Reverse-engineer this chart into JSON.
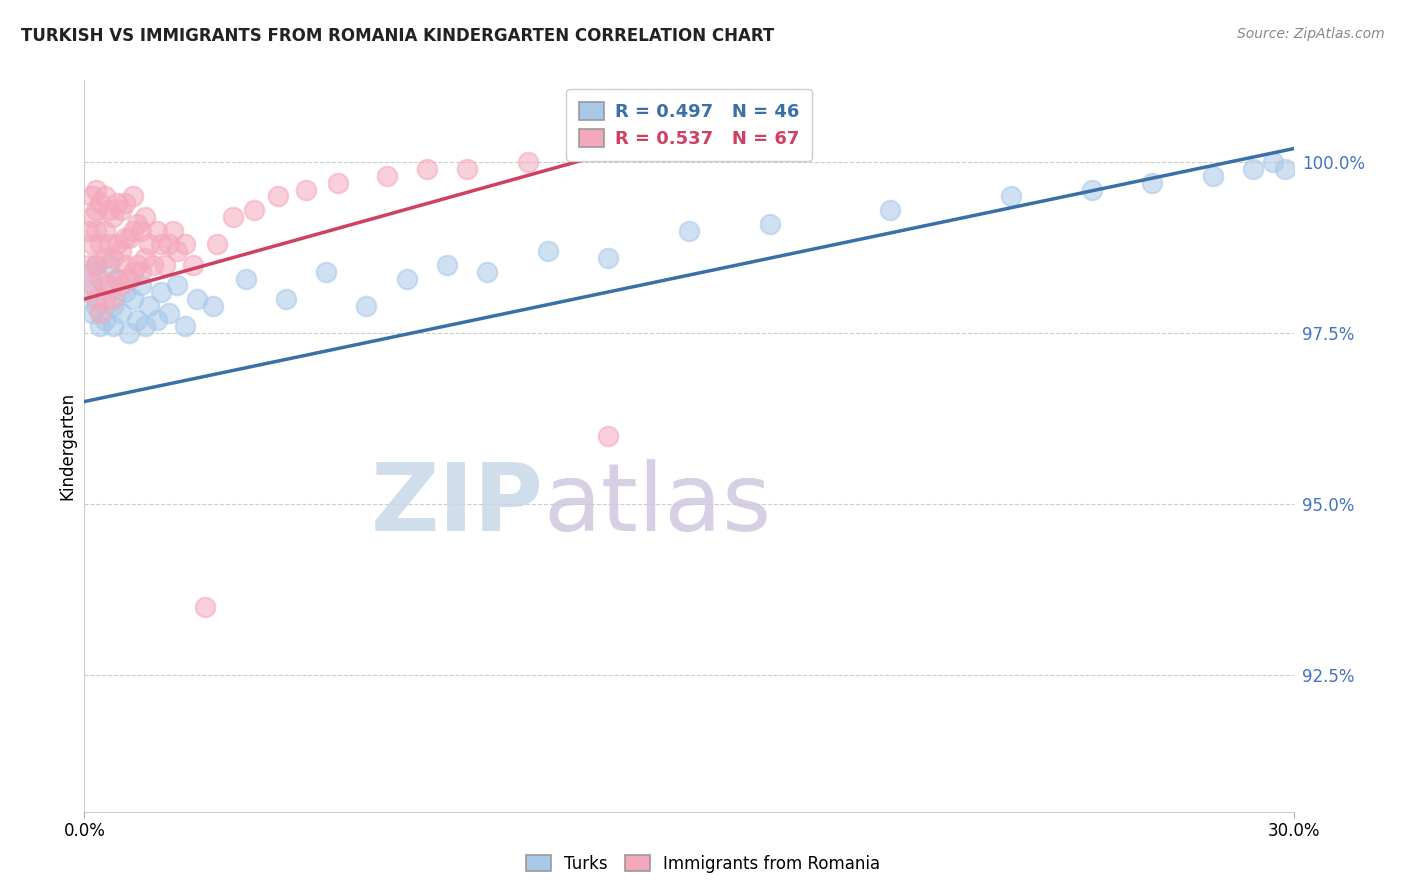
{
  "title": "TURKISH VS IMMIGRANTS FROM ROMANIA KINDERGARTEN CORRELATION CHART",
  "source": "Source: ZipAtlas.com",
  "ylabel": "Kindergarten",
  "ytick_values": [
    1.0,
    0.975,
    0.95,
    0.925
  ],
  "xlim": [
    0.0,
    0.3
  ],
  "ylim": [
    0.905,
    1.012
  ],
  "legend_turks": "R = 0.497   N = 46",
  "legend_romania": "R = 0.537   N = 67",
  "turks_color": "#a8c8e8",
  "romania_color": "#f4a8bc",
  "turks_line_color": "#3a6fa8",
  "romania_line_color": "#d04060",
  "background_color": "#ffffff",
  "turks_x": [
    0.001,
    0.002,
    0.002,
    0.003,
    0.003,
    0.004,
    0.005,
    0.005,
    0.006,
    0.007,
    0.007,
    0.008,
    0.009,
    0.01,
    0.011,
    0.012,
    0.013,
    0.014,
    0.015,
    0.016,
    0.018,
    0.019,
    0.021,
    0.023,
    0.025,
    0.028,
    0.032,
    0.04,
    0.05,
    0.06,
    0.07,
    0.08,
    0.09,
    0.1,
    0.115,
    0.13,
    0.15,
    0.17,
    0.2,
    0.23,
    0.25,
    0.265,
    0.28,
    0.29,
    0.295,
    0.298
  ],
  "turks_y": [
    0.981,
    0.978,
    0.984,
    0.979,
    0.985,
    0.976,
    0.982,
    0.977,
    0.985,
    0.979,
    0.976,
    0.983,
    0.978,
    0.981,
    0.975,
    0.98,
    0.977,
    0.982,
    0.976,
    0.979,
    0.977,
    0.981,
    0.978,
    0.982,
    0.976,
    0.98,
    0.979,
    0.983,
    0.98,
    0.984,
    0.979,
    0.983,
    0.985,
    0.984,
    0.987,
    0.986,
    0.99,
    0.991,
    0.993,
    0.995,
    0.996,
    0.997,
    0.998,
    0.999,
    1.0,
    0.999
  ],
  "romania_x": [
    0.001,
    0.001,
    0.002,
    0.002,
    0.002,
    0.002,
    0.003,
    0.003,
    0.003,
    0.003,
    0.003,
    0.004,
    0.004,
    0.004,
    0.004,
    0.005,
    0.005,
    0.005,
    0.005,
    0.006,
    0.006,
    0.006,
    0.007,
    0.007,
    0.007,
    0.008,
    0.008,
    0.008,
    0.009,
    0.009,
    0.009,
    0.01,
    0.01,
    0.01,
    0.011,
    0.011,
    0.012,
    0.012,
    0.012,
    0.013,
    0.013,
    0.014,
    0.014,
    0.015,
    0.015,
    0.016,
    0.017,
    0.018,
    0.019,
    0.02,
    0.021,
    0.022,
    0.023,
    0.025,
    0.027,
    0.03,
    0.033,
    0.037,
    0.042,
    0.048,
    0.055,
    0.063,
    0.075,
    0.085,
    0.095,
    0.11,
    0.13
  ],
  "romania_y": [
    0.985,
    0.99,
    0.982,
    0.988,
    0.992,
    0.995,
    0.98,
    0.985,
    0.99,
    0.993,
    0.996,
    0.978,
    0.983,
    0.988,
    0.994,
    0.98,
    0.986,
    0.99,
    0.995,
    0.982,
    0.988,
    0.993,
    0.98,
    0.986,
    0.992,
    0.983,
    0.988,
    0.994,
    0.982,
    0.987,
    0.993,
    0.985,
    0.989,
    0.994,
    0.983,
    0.989,
    0.984,
    0.99,
    0.995,
    0.985,
    0.991,
    0.984,
    0.99,
    0.986,
    0.992,
    0.988,
    0.985,
    0.99,
    0.988,
    0.985,
    0.988,
    0.99,
    0.987,
    0.988,
    0.985,
    0.935,
    0.988,
    0.992,
    0.993,
    0.995,
    0.996,
    0.997,
    0.998,
    0.999,
    0.999,
    1.0,
    0.96
  ],
  "turks_line_x0": 0.0,
  "turks_line_y0": 0.965,
  "turks_line_x1": 0.3,
  "turks_line_y1": 1.002,
  "romania_line_x0": 0.0,
  "romania_line_y0": 0.98,
  "romania_line_x1": 0.14,
  "romania_line_y1": 1.003
}
